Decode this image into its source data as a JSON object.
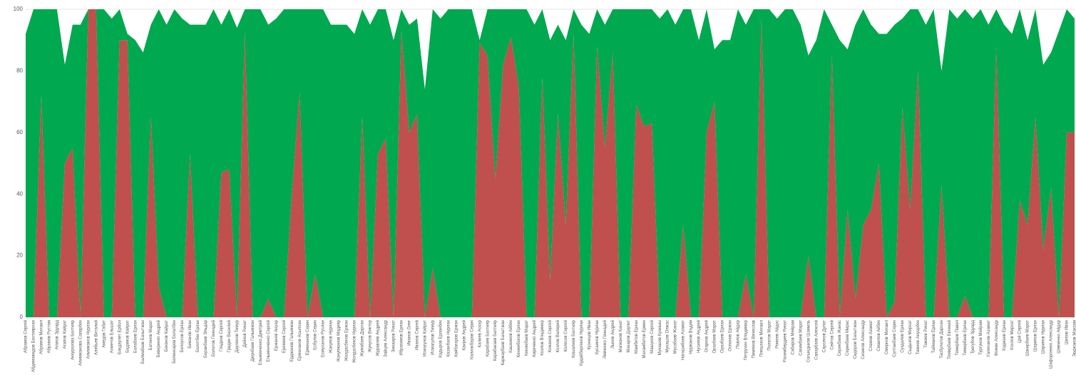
{
  "chart_data": {
    "type": "stacked_area",
    "categories": [
      "Абрамов Сергей",
      "Абдимажидов Бахтиярхан",
      "Абрамов Михаил",
      "Абрамов Рустам",
      "Агапов Эдуард",
      "Агапов Кайрат",
      "Аккуразова Бахтияр",
      "Алимжанова Сапарбек",
      "Алимжанов Нурлан",
      "Алябьев Виталий",
      "Амедов Габит",
      "Ахметов Ельшат",
      "Бакдаулет Ербол",
      "Бадамов Кайрат",
      "Балабаев Ерлан",
      "Балмабаев Бахытжан",
      "Батенов Марат",
      "Беверенко Андрей",
      "Бекенов Кайрат",
      "Беленкаров Болатбек",
      "Белоусов Ерлан",
      "Бимаков Иван",
      "Болотбек Ерлан",
      "Боранбаев Эльдар",
      "Болатов Геннадий",
      "Гладков Сергей",
      "Гридин Василий",
      "Дауленов Тимур",
      "Дейков Ринат",
      "Джунбаев Галымжан",
      "Ельменченко Дмитрий",
      "Ельменченко Сергей",
      "Ержанов Ануар",
      "Еремеев Сергей",
      "Ерджанов Галымжан",
      "Ермаханов Асылхан",
      "Ермеканов Серик",
      "Есбулов Серик",
      "Есмуханов Руслан",
      "Жакупов Нурлан",
      "Жакупжанов Мадияр",
      "Жолдасбеков Ержан",
      "Жолдасбеков Нурлан",
      "Жумабаев Дархан",
      "Жунусов Виктор",
      "Журавлев Андрей",
      "Зайцев Александр",
      "Зинаиров Ринат",
      "Ибрагимов Ерлан",
      "Иванов Олег",
      "Иванов Сергей",
      "Исмагулов Кайрат",
      "Исмагулов Тимур",
      "Кадыров Ерланбек",
      "Казанбаев Нурлан",
      "Кайбагаров Ержан",
      "Каиров Андрей",
      "Калиакбаров Серик",
      "Калиев Аскар",
      "Карабаев Бахтияр",
      "Карабакаев Бахтияр",
      "Каржаубаев Бахытжан",
      "Кашкинов Айбек",
      "Кенжебеков Ерлан",
      "Кенжебаев Марат",
      "Кириченко Андрей",
      "Козлов Владимир",
      "Кожанов Сергей",
      "Козлов Валерий",
      "Колесов Сергей",
      "Кошалиев Бахтияр",
      "Кудайбергенов Нурлан",
      "Кузнецов Иван",
      "Кусаинов Нурлан",
      "Левченко Геннадий",
      "Лыков Андрей",
      "Магжанов Канат",
      "Макаров Даулет",
      "Мамбетов Ерлан",
      "Махамбетов Ермек",
      "Машуков Сергей",
      "Мукашев Куаныш",
      "Мукашев Олжас",
      "Мусабаев Жанат",
      "Нагашибаев Азамат",
      "Нуржанов Вадим",
      "Нусипов Андрей",
      "Огарков Андрей",
      "Оразбаев Марат",
      "Оразбаев Ерлан",
      "Оспанов Ержан",
      "Павлов Айдар",
      "Петрухин Владимир",
      "Пименов Вячеслав",
      "Плешаков Михаил",
      "Полатов Марат",
      "Ромеев Айдос",
      "Рахимбердиев Ринат",
      "Сабиров Мейрам",
      "Сагимбаев Марат",
      "Сагындыков Шамиль",
      "Сапарбаев Алексей",
      "Сарсенов Дулат",
      "Сейтов Сергей",
      "Серикбаев Жанас",
      "Серикбаев Мирас",
      "Сидоров Бахытжан",
      "Сизиков Александр",
      "Сламов Азамат",
      "Смаилов Айбек",
      "Смирнов Михаил",
      "Султанбаев Серик",
      "Суздалев Ерлан",
      "Сыдыков Мирхат",
      "Тажиев Ануарбек",
      "Тажиев Ринат",
      "Тайманов Ерлан",
      "Тасбулатов Дархан",
      "Темирбаев Евгений",
      "Темирбаев Павел",
      "Тимирбаев Ерлан",
      "Трегубов Эдуард",
      "Тургунов Мейрам",
      "Уалиханов Азамат",
      "Фомин Александр",
      "Ходжаев Ерлан",
      "Хохлов Мирхат",
      "Цой Сергей",
      "Шакирбаев Марат",
      "Шарипов Ерлан",
      "Шарипов Нурлан",
      "Шафороенко Александр",
      "Шевченко Айдар",
      "Шипов Иван",
      "Эрджанов Максим"
    ],
    "series": [
      {
        "color": "#c0504d",
        "values": [
          0,
          0,
          72,
          0,
          0,
          50,
          55,
          0,
          100,
          100,
          0,
          0,
          90,
          90,
          0,
          0,
          65,
          10,
          0,
          0,
          0,
          53,
          0,
          0,
          0,
          47,
          48,
          0,
          93,
          0,
          0,
          6,
          0,
          0,
          40,
          73,
          0,
          14,
          0,
          0,
          0,
          0,
          0,
          65,
          0,
          53,
          58,
          0,
          93,
          60,
          66,
          0,
          16,
          0,
          0,
          0,
          0,
          0,
          89,
          85,
          45,
          82,
          91,
          75,
          0,
          0,
          78,
          12,
          66,
          30,
          92,
          0,
          0,
          88,
          55,
          86,
          0,
          0,
          69,
          62,
          63,
          0,
          0,
          0,
          30,
          0,
          0,
          60,
          70,
          0,
          0,
          0,
          14,
          0,
          97,
          0,
          0,
          0,
          0,
          0,
          20,
          0,
          0,
          85,
          0,
          35,
          6,
          30,
          35,
          50,
          0,
          5,
          68,
          35,
          80,
          0,
          0,
          43,
          0,
          0,
          7,
          0,
          0,
          0,
          88,
          0,
          0,
          38,
          30,
          65,
          22,
          42,
          0,
          60,
          60
        ]
      },
      {
        "color": "#00a84f",
        "values": [
          92,
          100,
          28,
          100,
          100,
          32,
          40,
          95,
          0,
          0,
          100,
          97,
          10,
          2,
          90,
          86,
          30,
          90,
          95,
          100,
          97,
          42,
          95,
          95,
          100,
          48,
          52,
          94,
          7,
          100,
          100,
          89,
          97,
          100,
          60,
          27,
          100,
          86,
          100,
          95,
          95,
          95,
          92,
          35,
          95,
          47,
          42,
          90,
          7,
          35,
          31,
          74,
          84,
          97,
          100,
          100,
          100,
          100,
          1,
          15,
          55,
          18,
          9,
          25,
          100,
          95,
          22,
          78,
          29,
          60,
          8,
          95,
          92,
          12,
          40,
          14,
          100,
          100,
          31,
          38,
          37,
          97,
          100,
          95,
          70,
          100,
          90,
          40,
          17,
          90,
          90,
          100,
          81,
          100,
          3,
          100,
          97,
          100,
          100,
          95,
          65,
          90,
          100,
          10,
          90,
          52,
          89,
          70,
          60,
          42,
          92,
          90,
          29,
          65,
          20,
          95,
          100,
          37,
          100,
          97,
          93,
          97,
          100,
          95,
          12,
          95,
          92,
          62,
          60,
          35,
          60,
          44,
          93,
          40,
          37
        ]
      }
    ],
    "ylim": [
      0,
      100
    ],
    "yticks": [
      0,
      20,
      40,
      60,
      80,
      100
    ],
    "grid": true
  }
}
